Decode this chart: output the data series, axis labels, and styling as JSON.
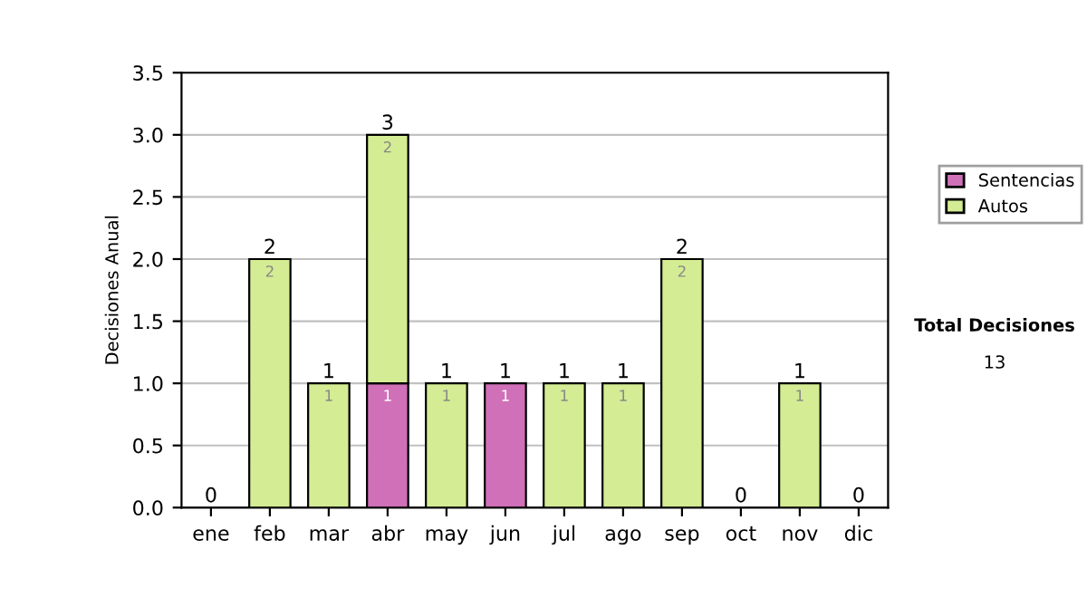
{
  "chart_data": {
    "type": "bar",
    "stacked": true,
    "ylabel": "Decisiones Anual",
    "categories": [
      "ene",
      "feb",
      "mar",
      "abr",
      "may",
      "jun",
      "jul",
      "ago",
      "sep",
      "oct",
      "nov",
      "dic"
    ],
    "series": [
      {
        "name": "Sentencias",
        "color": "#d070b8",
        "values": [
          0,
          0,
          0,
          1,
          0,
          1,
          0,
          0,
          0,
          0,
          0,
          0
        ],
        "value_labels": [
          null,
          null,
          null,
          "1",
          null,
          "1",
          null,
          null,
          null,
          null,
          null,
          null
        ]
      },
      {
        "name": "Autos",
        "color": "#d4ec94",
        "values": [
          0,
          2,
          1,
          2,
          1,
          0,
          1,
          1,
          2,
          0,
          1,
          0
        ],
        "value_labels": [
          null,
          "2",
          "1",
          "2",
          "1",
          null,
          "1",
          "1",
          "2",
          null,
          "1",
          null
        ]
      }
    ],
    "totals": [
      "0",
      "2",
      "1",
      "3",
      "1",
      "1",
      "1",
      "1",
      "2",
      "0",
      "1",
      "0"
    ],
    "ylim": [
      0,
      3.5
    ],
    "yticks": [
      {
        "value": 0,
        "label": "0.0"
      },
      {
        "value": 0.5,
        "label": "0.5"
      },
      {
        "value": 1,
        "label": "1.0"
      },
      {
        "value": 1.5,
        "label": "1.5"
      },
      {
        "value": 2,
        "label": "2.0"
      },
      {
        "value": 2.5,
        "label": "2.5"
      },
      {
        "value": 3,
        "label": "3.0"
      },
      {
        "value": 3.5,
        "label": "3.5"
      }
    ],
    "grid": "y",
    "legend": "right",
    "annotations": [
      "Total Decisiones",
      "13"
    ]
  }
}
